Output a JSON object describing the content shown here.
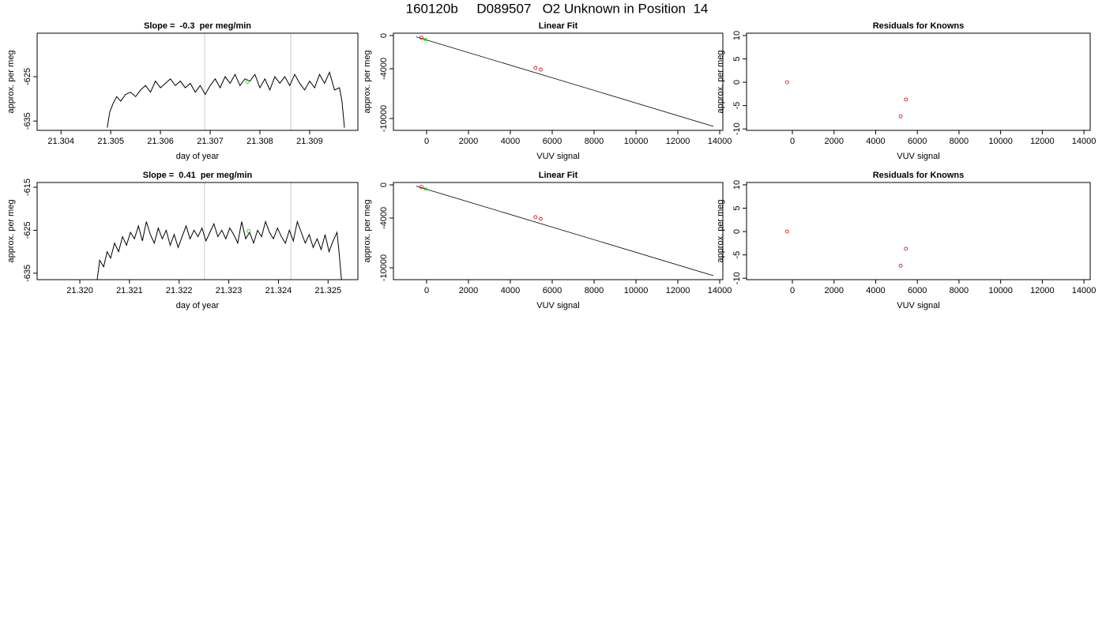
{
  "title": "160120b     D089507   O2 Unknown in Position  14",
  "chart_data": [
    {
      "type": "line",
      "title": "Slope =  -0.3  per meg/min",
      "x_label": "day of year",
      "y_label": "approx. per meg",
      "xlim": [
        21.30352,
        21.30997
      ],
      "xticks": [
        21.304,
        21.305,
        21.306,
        21.307,
        21.308,
        21.309
      ],
      "ylim": [
        -637.1,
        -615.2
      ],
      "yticks": [
        -635,
        -625
      ],
      "x": [
        21.30493,
        21.30498,
        21.30505,
        21.30512,
        21.3052,
        21.3053,
        21.3054,
        21.3055,
        21.3056,
        21.3057,
        21.3058,
        21.3059,
        21.306,
        21.3061,
        21.3062,
        21.3063,
        21.3064,
        21.3065,
        21.3066,
        21.3067,
        21.3068,
        21.3069,
        21.307,
        21.3071,
        21.3072,
        21.3073,
        21.3074,
        21.3075,
        21.3076,
        21.3077,
        21.3078,
        21.3079,
        21.308,
        21.3081,
        21.3082,
        21.3083,
        21.3084,
        21.3085,
        21.3086,
        21.3087,
        21.3088,
        21.3089,
        21.309,
        21.3091,
        21.3092,
        21.3093,
        21.3094,
        21.3095,
        21.3096,
        21.30965,
        21.3097
      ],
      "series": [
        {
          "color": "#000000",
          "values": [
            -636.5,
            -633,
            -631,
            -629.5,
            -630.5,
            -629,
            -628.5,
            -629.5,
            -628,
            -627,
            -628.5,
            -626,
            -627.5,
            -626.5,
            -625.5,
            -627,
            -626,
            -627.5,
            -626.5,
            -628.5,
            -627,
            -629,
            -627,
            -625.5,
            -627.5,
            -625,
            -626.5,
            -624.5,
            -627,
            -625.5,
            -626,
            -624.5,
            -627.5,
            -625.5,
            -628,
            -625,
            -626.5,
            -625,
            -627,
            -624.5,
            -626.5,
            -628,
            -626,
            -627.5,
            -624.5,
            -626.5,
            -624,
            -628,
            -627.5,
            -630.5,
            -636.5
          ]
        }
      ],
      "markers": {
        "color": "#00cc00",
        "x": [
          21.30775
        ],
        "y": [
          -626.2
        ]
      },
      "vlines": {
        "color": "#cccccc",
        "values": [
          21.30689,
          21.30862
        ]
      }
    },
    {
      "type": "fit",
      "title": "Linear Fit",
      "x_label": "VUV signal",
      "y_label": "approx. per meg",
      "xlim": [
        -1585,
        14150
      ],
      "xticks": [
        0,
        2000,
        4000,
        6000,
        8000,
        10000,
        12000,
        14000
      ],
      "ylim": [
        -11430,
        286
      ],
      "yticks": [
        -10000,
        -4000,
        0
      ],
      "fit_line": {
        "color": "#000000",
        "x": [
          -500,
          13700
        ],
        "y": [
          -150,
          -10950
        ]
      },
      "knowns": {
        "color": "#cc0000",
        "x": [
          -250,
          5200,
          5450
        ],
        "y": [
          -250,
          -3900,
          -4100
        ]
      },
      "unknowns": {
        "color": "#00cc00",
        "x": [
          -60
        ],
        "y": [
          -480
        ]
      }
    },
    {
      "type": "scatter",
      "title": "Residuals for Knowns",
      "x_label": "VUV signal",
      "y_label": "approx. per meg",
      "xlim": [
        -2200,
        14300
      ],
      "xticks": [
        0,
        2000,
        4000,
        6000,
        8000,
        10000,
        12000,
        14000
      ],
      "ylim": [
        -10.3,
        10.5
      ],
      "yticks": [
        -10,
        -5,
        0,
        5,
        10
      ],
      "x": [
        -250,
        5200,
        5450
      ],
      "values": [
        0,
        -7.3,
        -3.7
      ],
      "color": "#cc0000"
    },
    {
      "type": "line",
      "title": "Slope =  0.41  per meg/min",
      "x_label": "day of year",
      "y_label": "approx. per meg",
      "xlim": [
        21.31914,
        21.3256
      ],
      "xticks": [
        {
          "value": 21.32,
          "label": "21.320"
        },
        21.321,
        21.322,
        21.323,
        21.324,
        21.325
      ],
      "ylim": [
        -636.5,
        -613.9
      ],
      "yticks": [
        -635,
        -625,
        -615
      ],
      "x": [
        21.32035,
        21.3204,
        21.32048,
        21.32055,
        21.32062,
        21.3207,
        21.32078,
        21.32086,
        21.32094,
        21.32102,
        21.3211,
        21.32118,
        21.32126,
        21.32134,
        21.32142,
        21.3215,
        21.32158,
        21.32166,
        21.32174,
        21.32182,
        21.3219,
        21.32198,
        21.32206,
        21.32214,
        21.32222,
        21.3223,
        21.32238,
        21.32246,
        21.32254,
        21.32262,
        21.3227,
        21.32278,
        21.32286,
        21.32294,
        21.32302,
        21.3231,
        21.32318,
        21.32326,
        21.32334,
        21.32342,
        21.3235,
        21.32358,
        21.32366,
        21.32374,
        21.32382,
        21.3239,
        21.32398,
        21.32406,
        21.32414,
        21.32422,
        21.3243,
        21.32438,
        21.32446,
        21.32454,
        21.32462,
        21.3247,
        21.32478,
        21.32486,
        21.32494,
        21.32502,
        21.3251,
        21.32518,
        21.32522,
        21.32527
      ],
      "series": [
        {
          "color": "#000000",
          "values": [
            -636.5,
            -632,
            -633.5,
            -630,
            -631.5,
            -628,
            -630,
            -626.5,
            -628.5,
            -625.5,
            -627,
            -624,
            -627.5,
            -623,
            -626,
            -628,
            -624.5,
            -627,
            -625,
            -628.5,
            -626,
            -629,
            -626.5,
            -624,
            -627,
            -625,
            -626.5,
            -624.5,
            -627.5,
            -625.5,
            -623.5,
            -626.5,
            -625,
            -627,
            -624.5,
            -626,
            -628,
            -623,
            -627,
            -625.5,
            -628,
            -625,
            -626.5,
            -623,
            -625.5,
            -627,
            -624.5,
            -626.5,
            -628,
            -625,
            -627.5,
            -623,
            -625.5,
            -628,
            -626,
            -629,
            -627,
            -629.5,
            -626,
            -630,
            -627.5,
            -625.5,
            -630,
            -636.5
          ]
        }
      ],
      "markers": {
        "color": "#00cc00",
        "x": [
          21.3234
        ],
        "y": [
          -625.2
        ]
      },
      "vlines": {
        "color": "#cccccc",
        "values": [
          21.32251,
          21.32425
        ]
      }
    },
    {
      "type": "fit",
      "title": "Linear Fit",
      "x_label": "VUV signal",
      "y_label": "approx. per meg",
      "xlim": [
        -1585,
        14150
      ],
      "xticks": [
        0,
        2000,
        4000,
        6000,
        8000,
        10000,
        12000,
        14000
      ],
      "ylim": [
        -11430,
        286
      ],
      "yticks": [
        -10000,
        -4000,
        0
      ],
      "fit_line": {
        "color": "#000000",
        "x": [
          -500,
          13700
        ],
        "y": [
          -150,
          -10950
        ]
      },
      "knowns": {
        "color": "#cc0000",
        "x": [
          -250,
          5200,
          5450
        ],
        "y": [
          -250,
          -3900,
          -4100
        ]
      },
      "unknowns": {
        "color": "#00cc00",
        "x": [
          -60
        ],
        "y": [
          -480
        ]
      }
    },
    {
      "type": "scatter",
      "title": "Residuals for Knowns",
      "x_label": "VUV signal",
      "y_label": "approx. per meg",
      "xlim": [
        -2200,
        14300
      ],
      "xticks": [
        0,
        2000,
        4000,
        6000,
        8000,
        10000,
        12000,
        14000
      ],
      "ylim": [
        -10.3,
        10.5
      ],
      "yticks": [
        -10,
        -5,
        0,
        5,
        10
      ],
      "x": [
        -250,
        5200,
        5450
      ],
      "values": [
        0,
        -7.3,
        -3.7
      ],
      "color": "#cc0000"
    }
  ]
}
